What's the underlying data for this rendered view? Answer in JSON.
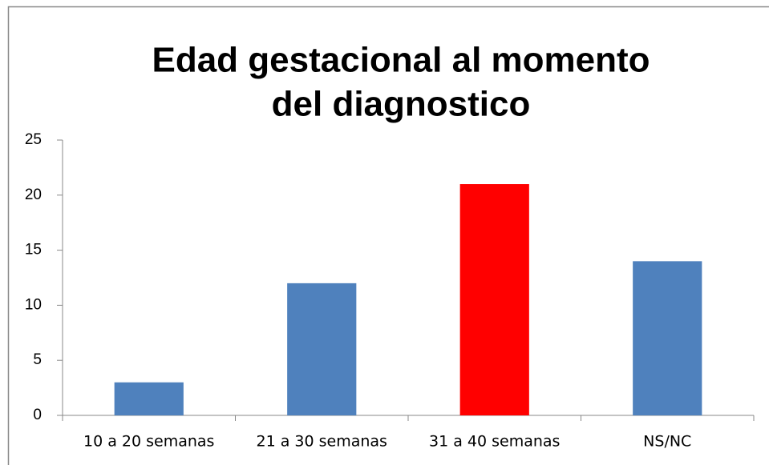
{
  "chart_data": {
    "type": "bar",
    "title": [
      "Edad gestacional al momento",
      "del diagnostico"
    ],
    "categories": [
      "10 a 20 semanas",
      "21 a 30 semanas",
      "31 a 40 semanas",
      "NS/NC"
    ],
    "values": [
      3,
      12,
      21,
      14
    ],
    "colors": [
      "#4f81bd",
      "#4f81bd",
      "#ff0000",
      "#4f81bd"
    ],
    "ylim": [
      0,
      25
    ],
    "yticks": [
      0,
      5,
      10,
      15,
      20,
      25
    ],
    "grid": false
  }
}
